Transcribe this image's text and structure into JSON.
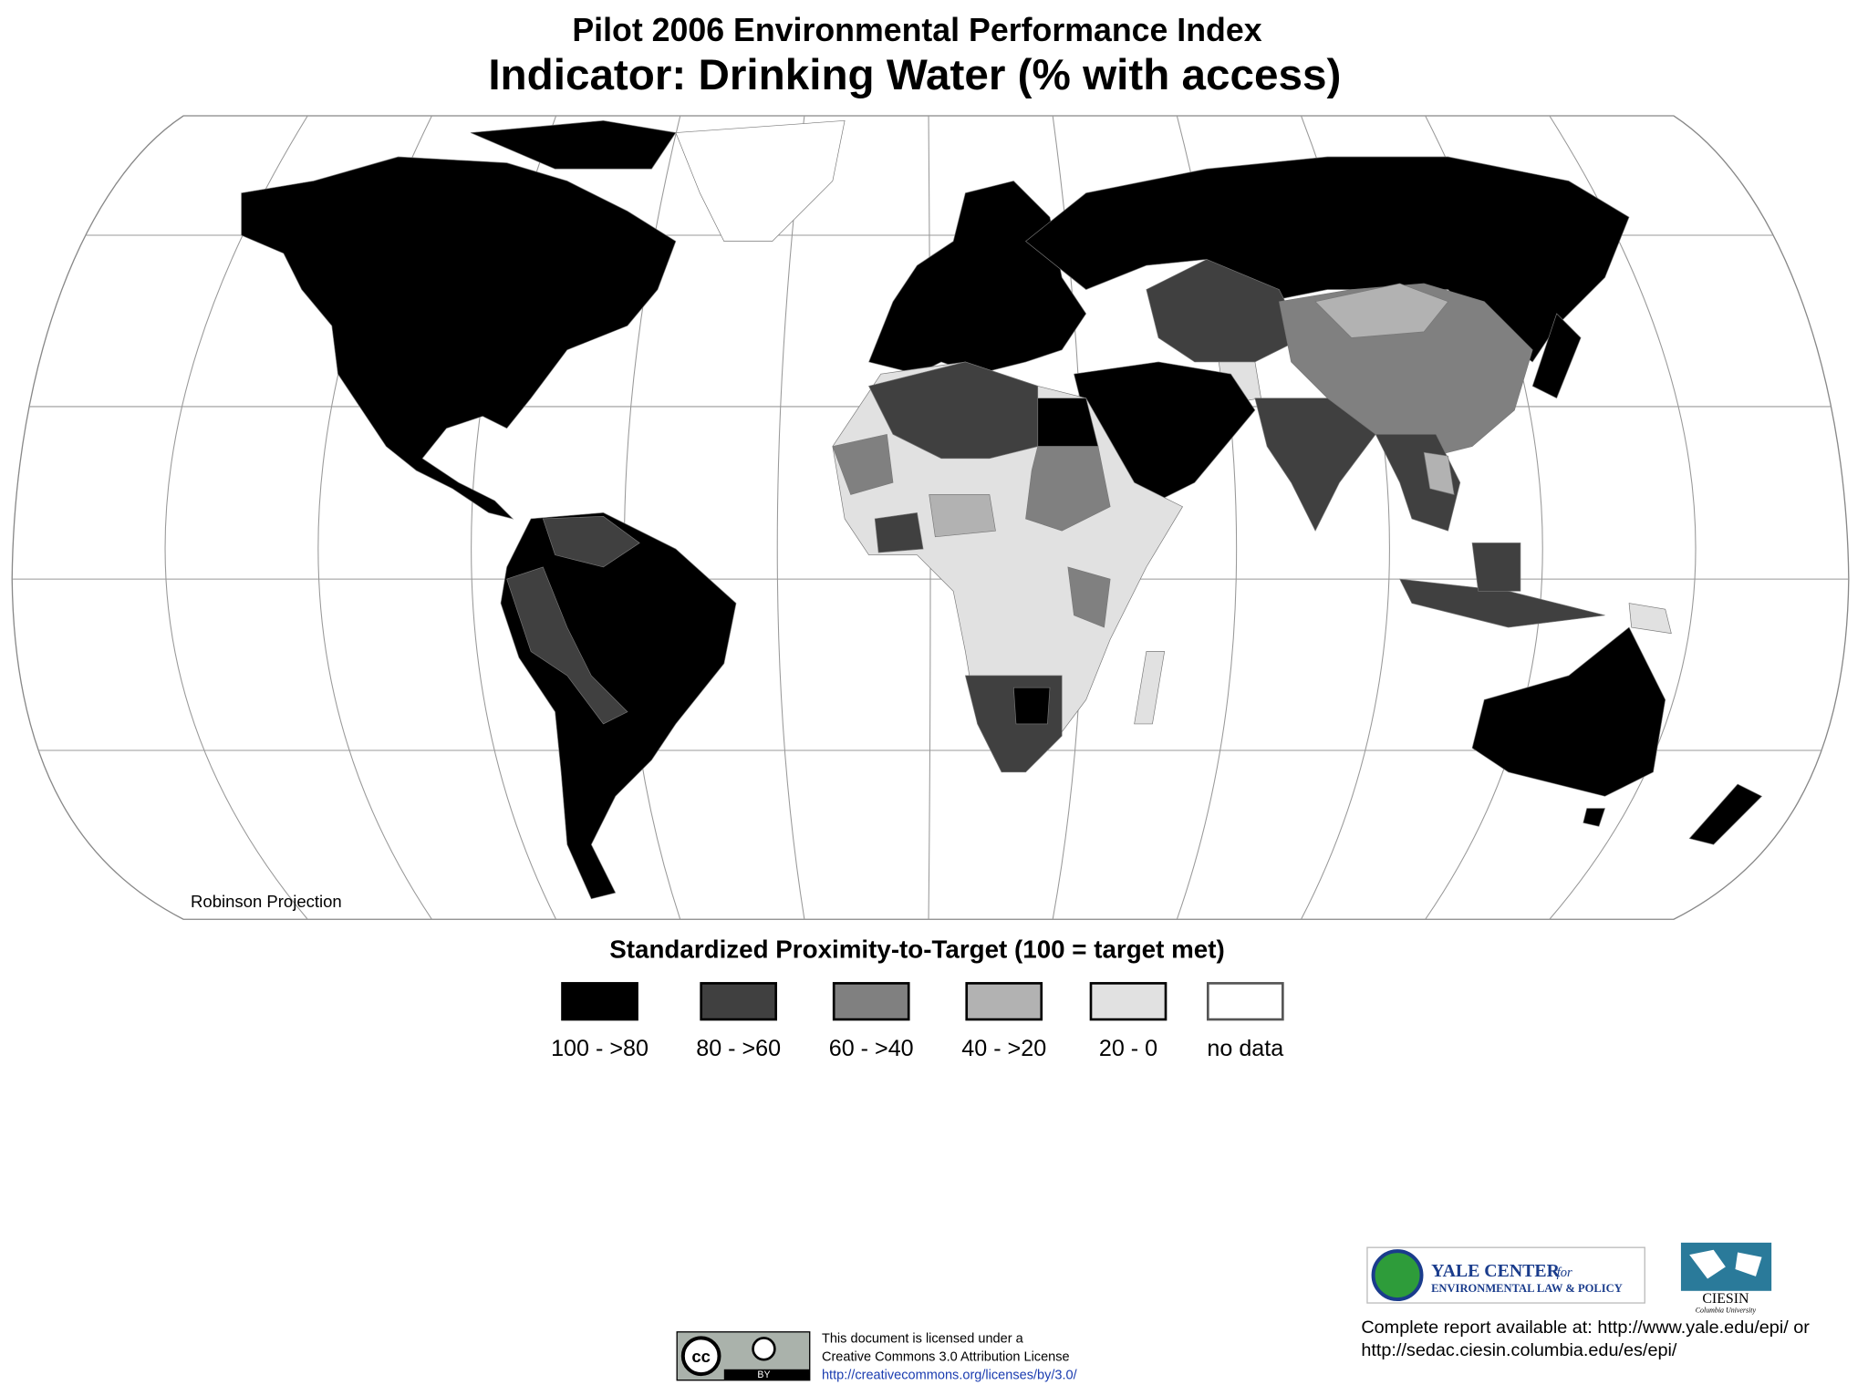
{
  "header": {
    "title": "Pilot 2006 Environmental Performance Index",
    "subtitle": "Indicator: Drinking Water (% with access)"
  },
  "map": {
    "projection": "Robinson Projection"
  },
  "legend": {
    "title": "Standardized Proximity-to-Target (100 = target met)",
    "items": [
      {
        "label": "100 - >80",
        "color": "#000000"
      },
      {
        "label": "80 - >60",
        "color": "#404040"
      },
      {
        "label": "60 - >40",
        "color": "#808080"
      },
      {
        "label": "40 - >20",
        "color": "#b2b2b2"
      },
      {
        "label": "20 - 0",
        "color": "#e1e1e1"
      },
      {
        "label": "no data",
        "color": "#ffffff"
      }
    ]
  },
  "logos": {
    "yale": [
      "YALE CENTER",
      "for",
      "ENVIRONMENTAL LAW & POLICY"
    ],
    "ciesin": [
      "CIESIN",
      "Columbia University"
    ]
  },
  "report": {
    "lines": [
      "Complete report available at: http://www.yale.edu/epi/ or",
      "http://sedac.ciesin.columbia.edu/es/epi/"
    ]
  },
  "license": {
    "badge": [
      "cc",
      "BY"
    ],
    "lines": [
      "This document is licensed under a",
      "Creative Commons 3.0 Attribution License",
      "http://creativecommons.org/licenses/by/3.0/"
    ]
  }
}
